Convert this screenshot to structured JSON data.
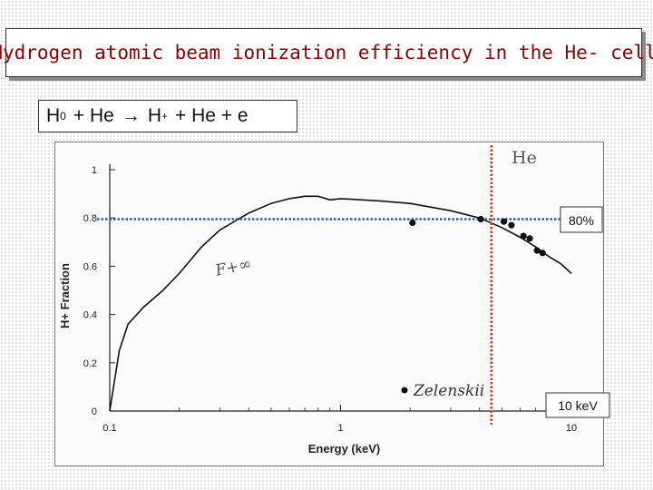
{
  "title": "Hydrogen atomic beam ionization efficiency in the He- cell",
  "reaction": {
    "h": "H",
    "h_sup": "0",
    "plus_he": "+ He",
    "arrow": "→",
    "h2": "H",
    "h2_sup": "+",
    "rest": "+  He + e"
  },
  "annotations": {
    "he_label": "He",
    "percent_label": "80%",
    "energy_label": "10 keV",
    "curve_label": "F+∞",
    "legend_label": "Zelenskii"
  },
  "colors": {
    "title": "#8b0000",
    "dotted_horizontal": "#2b5fa8",
    "dotted_vertical": "#c0442a",
    "curve": "#111111"
  },
  "chart_data": {
    "type": "line",
    "xlabel": "Energy (keV)",
    "ylabel": "H+ Fraction",
    "xscale": "log",
    "xlim": [
      0.1,
      10
    ],
    "ylim": [
      0,
      1
    ],
    "x_ticks": [
      "0.1",
      "1",
      "10"
    ],
    "y_ticks": [
      "0",
      "0.2",
      "0.4",
      "0.6",
      "0.8",
      "1"
    ],
    "series": [
      {
        "kind": "curve",
        "x": [
          0.1,
          0.11,
          0.12,
          0.14,
          0.17,
          0.2,
          0.25,
          0.3,
          0.4,
          0.5,
          0.6,
          0.7,
          0.8,
          0.9,
          1.0,
          1.5,
          2,
          3,
          4,
          5,
          6,
          7,
          8,
          9,
          10
        ],
        "y": [
          0.0,
          0.25,
          0.36,
          0.43,
          0.5,
          0.57,
          0.68,
          0.75,
          0.82,
          0.86,
          0.88,
          0.89,
          0.89,
          0.875,
          0.88,
          0.87,
          0.86,
          0.83,
          0.8,
          0.76,
          0.72,
          0.68,
          0.64,
          0.61,
          0.57
        ]
      },
      {
        "kind": "points",
        "x": [
          2.05,
          4.05,
          5.1,
          5.5,
          6.2,
          6.6,
          7.1,
          7.5
        ],
        "y": [
          0.78,
          0.795,
          0.785,
          0.77,
          0.725,
          0.715,
          0.665,
          0.655
        ]
      }
    ],
    "reference_lines": [
      {
        "axis": "y",
        "value": 0.795
      },
      {
        "axis": "x",
        "value": 4.5
      }
    ]
  }
}
